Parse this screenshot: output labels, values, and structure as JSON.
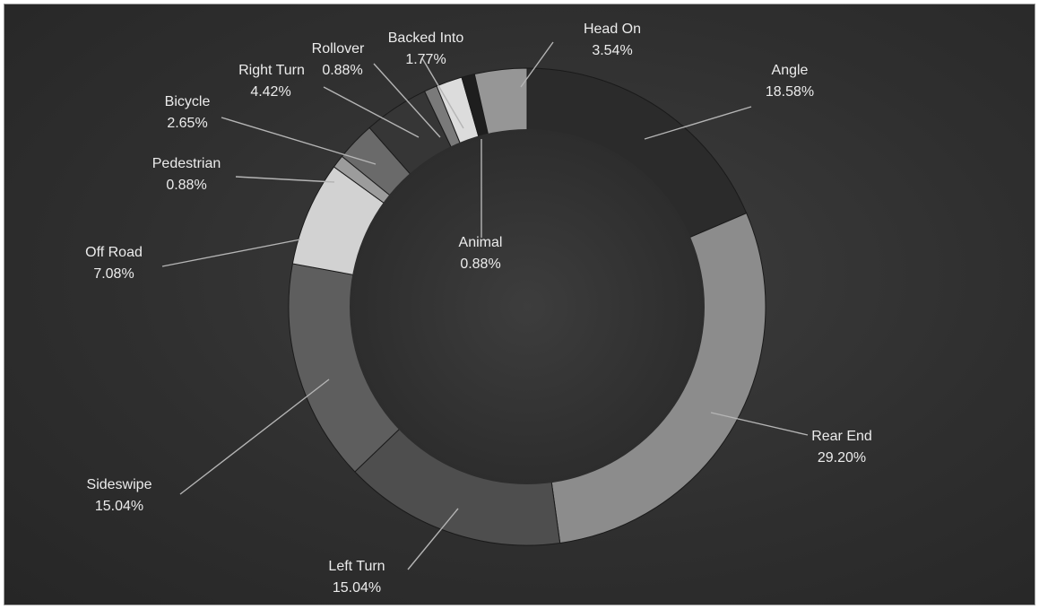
{
  "chart_data": {
    "type": "pie",
    "variant": "doughnut",
    "start_angle_deg": 0,
    "title": "",
    "slices": [
      {
        "label": "Angle",
        "value": 18.58,
        "value_label": "18.58%",
        "color": "#2b2b2b"
      },
      {
        "label": "Rear End",
        "value": 29.2,
        "value_label": "29.20%",
        "color": "#8c8c8c"
      },
      {
        "label": "Left Turn",
        "value": 15.04,
        "value_label": "15.04%",
        "color": "#4e4e4e"
      },
      {
        "label": "Sideswipe",
        "value": 15.04,
        "value_label": "15.04%",
        "color": "#5e5e5e"
      },
      {
        "label": "Off Road",
        "value": 7.08,
        "value_label": "7.08%",
        "color": "#d2d2d2"
      },
      {
        "label": "Pedestrian",
        "value": 0.88,
        "value_label": "0.88%",
        "color": "#9c9c9c"
      },
      {
        "label": "Bicycle",
        "value": 2.65,
        "value_label": "2.65%",
        "color": "#6a6a6a"
      },
      {
        "label": "Right Turn",
        "value": 4.42,
        "value_label": "4.42%",
        "color": "#363636"
      },
      {
        "label": "Rollover",
        "value": 0.88,
        "value_label": "0.88%",
        "color": "#7a7a7a"
      },
      {
        "label": "Backed Into",
        "value": 1.77,
        "value_label": "1.77%",
        "color": "#dcdcdc"
      },
      {
        "label": "Animal",
        "value": 0.88,
        "value_label": "0.88%",
        "color": "#1e1e1e"
      },
      {
        "label": "Head On",
        "value": 3.54,
        "value_label": "3.54%",
        "color": "#969696"
      }
    ]
  }
}
